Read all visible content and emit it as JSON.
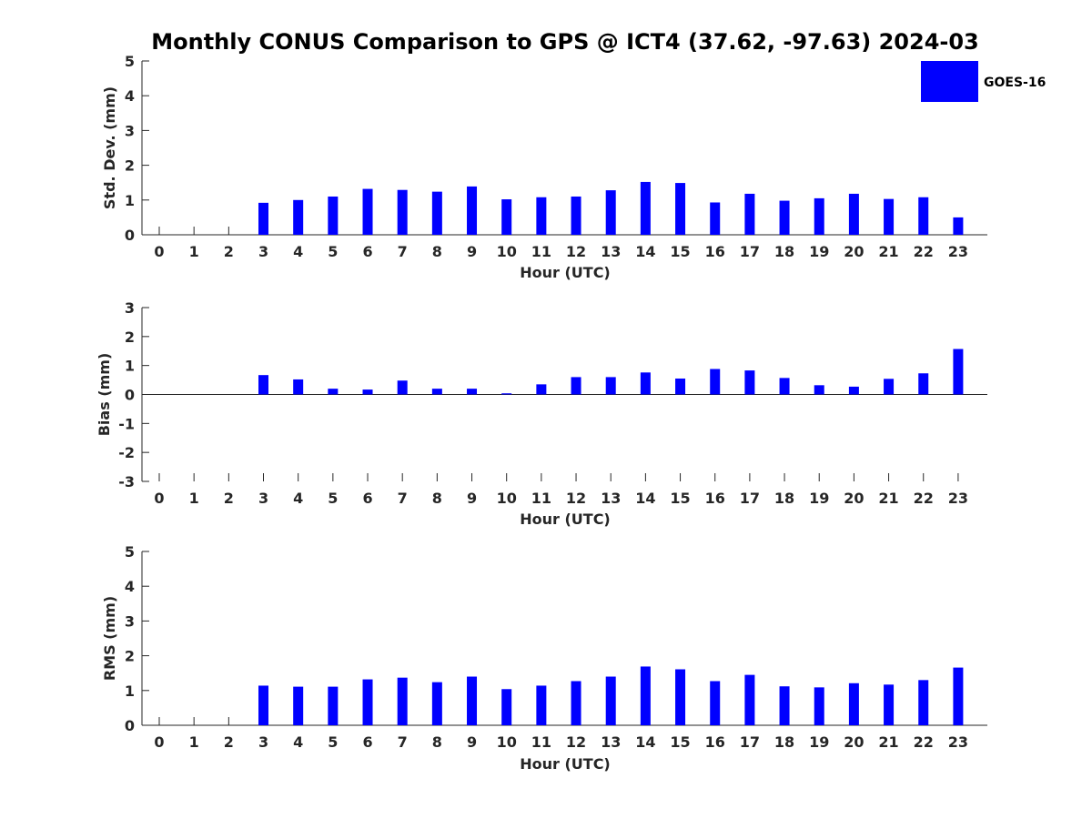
{
  "title": "Monthly CONUS Comparison to GPS @ ICT4 (37.62, -97.63) 2024-03",
  "colors": {
    "bar": "#0000ff",
    "axis": "#262626",
    "background": "#ffffff"
  },
  "legend": {
    "label": "GOES-16",
    "placement": "top-right"
  },
  "chart_data": [
    {
      "type": "bar",
      "categories": [
        "0",
        "1",
        "2",
        "3",
        "4",
        "5",
        "6",
        "7",
        "8",
        "9",
        "10",
        "11",
        "12",
        "13",
        "14",
        "15",
        "16",
        "17",
        "18",
        "19",
        "20",
        "21",
        "22",
        "23"
      ],
      "series": [
        {
          "name": "GOES-16",
          "values": [
            null,
            null,
            null,
            0.92,
            1.0,
            1.1,
            1.32,
            1.29,
            1.24,
            1.39,
            1.02,
            1.08,
            1.1,
            1.28,
            1.52,
            1.49,
            0.93,
            1.18,
            0.98,
            1.05,
            1.18,
            1.03,
            1.08,
            0.5
          ]
        }
      ],
      "xlabel": "Hour (UTC)",
      "ylabel": "Std. Dev. (mm)",
      "ylim": [
        0,
        5
      ],
      "yticks": [
        0,
        1,
        2,
        3,
        4,
        5
      ],
      "grid": false
    },
    {
      "type": "bar",
      "categories": [
        "0",
        "1",
        "2",
        "3",
        "4",
        "5",
        "6",
        "7",
        "8",
        "9",
        "10",
        "11",
        "12",
        "13",
        "14",
        "15",
        "16",
        "17",
        "18",
        "19",
        "20",
        "21",
        "22",
        "23"
      ],
      "series": [
        {
          "name": "GOES-16",
          "values": [
            null,
            null,
            null,
            0.67,
            0.52,
            0.2,
            0.17,
            0.48,
            0.2,
            0.2,
            0.04,
            0.35,
            0.6,
            0.6,
            0.76,
            0.55,
            0.88,
            0.83,
            0.57,
            0.32,
            0.27,
            0.54,
            0.73,
            1.57
          ]
        }
      ],
      "xlabel": "Hour (UTC)",
      "ylabel": "Bias (mm)",
      "ylim": [
        -3,
        3
      ],
      "yticks": [
        -3,
        -2,
        -1,
        0,
        1,
        2,
        3
      ],
      "grid": false
    },
    {
      "type": "bar",
      "categories": [
        "0",
        "1",
        "2",
        "3",
        "4",
        "5",
        "6",
        "7",
        "8",
        "9",
        "10",
        "11",
        "12",
        "13",
        "14",
        "15",
        "16",
        "17",
        "18",
        "19",
        "20",
        "21",
        "22",
        "23"
      ],
      "series": [
        {
          "name": "GOES-16",
          "values": [
            null,
            null,
            null,
            1.14,
            1.11,
            1.11,
            1.32,
            1.37,
            1.24,
            1.4,
            1.04,
            1.14,
            1.27,
            1.4,
            1.69,
            1.61,
            1.27,
            1.45,
            1.12,
            1.09,
            1.21,
            1.17,
            1.3,
            1.66
          ]
        }
      ],
      "xlabel": "Hour (UTC)",
      "ylabel": "RMS (mm)",
      "ylim": [
        0,
        5
      ],
      "yticks": [
        0,
        1,
        2,
        3,
        4,
        5
      ],
      "grid": false
    }
  ]
}
